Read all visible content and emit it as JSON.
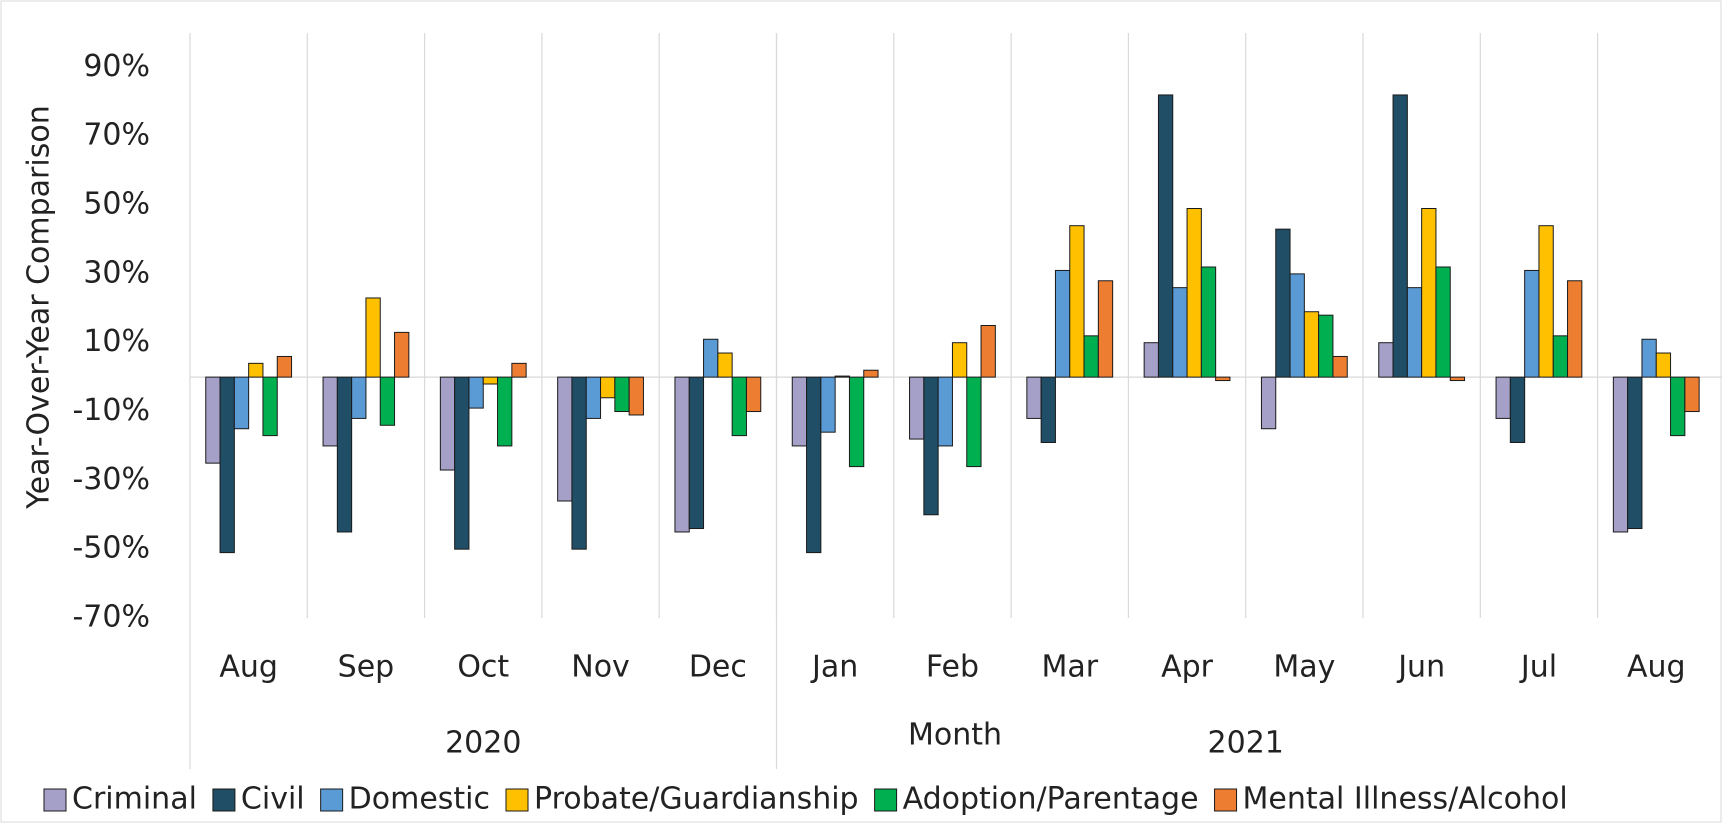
{
  "chart_data": {
    "type": "bar",
    "y_label": "Year-Over-Year Comparison",
    "x_label": "Month",
    "categories": [
      "Aug",
      "Sep",
      "Oct",
      "Nov",
      "Dec",
      "Jan",
      "Feb",
      "Mar",
      "Apr",
      "May",
      "Jun",
      "Jul",
      "Aug"
    ],
    "groups": [
      {
        "label": "2020",
        "span": 5
      },
      {
        "label": "2021",
        "span": 8
      }
    ],
    "series": [
      {
        "name": "Criminal",
        "color": "#a5a0c8",
        "values": [
          -25,
          -20,
          -27,
          -36,
          -45,
          -20,
          -18,
          -12,
          10,
          -15,
          10,
          -12,
          -45
        ]
      },
      {
        "name": "Civil",
        "color": "#1f4e66",
        "values": [
          -51,
          -45,
          -50,
          -50,
          -44,
          -51,
          -40,
          -19,
          82,
          43,
          82,
          -19,
          -44
        ]
      },
      {
        "name": "Domestic",
        "color": "#5b9bd5",
        "values": [
          -15,
          -12,
          -9,
          -12,
          11,
          -16,
          -20,
          31,
          26,
          30,
          26,
          31,
          11
        ]
      },
      {
        "name": "Probate/Guardianship",
        "color": "#ffc000",
        "values": [
          4,
          23,
          -2,
          -6,
          7,
          0.3,
          10,
          44,
          49,
          19,
          49,
          44,
          7
        ]
      },
      {
        "name": "Adoption/Parentage",
        "color": "#00b050",
        "values": [
          -17,
          -14,
          -20,
          -10,
          -17,
          -26,
          -26,
          12,
          32,
          18,
          32,
          12,
          -17
        ]
      },
      {
        "name": "Mental Illness/Alcohol",
        "color": "#ed7d31",
        "values": [
          6,
          13,
          4,
          -11,
          -10,
          2,
          15,
          28,
          -1,
          6,
          -1,
          28,
          -10
        ]
      }
    ],
    "ylim": [
      -70,
      100
    ],
    "yticks": [
      {
        "value": -70,
        "label": "-70%"
      },
      {
        "value": -50,
        "label": "-50%"
      },
      {
        "value": -30,
        "label": "-30%"
      },
      {
        "value": -10,
        "label": "-10%"
      },
      {
        "value": 10,
        "label": "10%"
      },
      {
        "value": 30,
        "label": "30%"
      },
      {
        "value": 50,
        "label": "50%"
      },
      {
        "value": 70,
        "label": "70%"
      },
      {
        "value": 90,
        "label": "90%"
      }
    ],
    "legend": "bottom"
  }
}
